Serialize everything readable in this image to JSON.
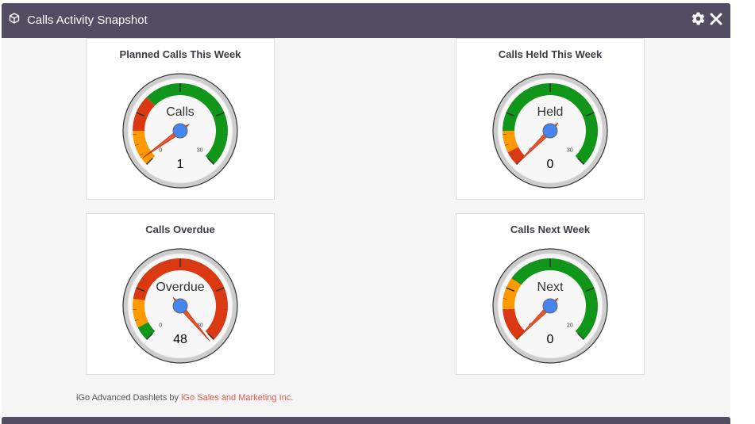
{
  "header": {
    "title": "Calls Activity Snapshot",
    "icon": "cube-icon",
    "actions": [
      "gear-icon",
      "close-icon"
    ]
  },
  "colors": {
    "header_bg": "#534d64",
    "green": "#109618",
    "orange": "#ff9900",
    "red": "#dc3912",
    "needle": "#e5582f",
    "hub": "#4684ee"
  },
  "gauges": [
    {
      "title": "Planned Calls This Week",
      "label": "Calls",
      "value": 1,
      "min": 0,
      "max": 30,
      "min_label": "0",
      "max_label": "30",
      "bands": [
        {
          "from": 0,
          "to": 5,
          "color": "orange"
        },
        {
          "from": 5,
          "to": 10,
          "color": "red"
        },
        {
          "from": 10,
          "to": 30,
          "color": "green"
        }
      ]
    },
    {
      "title": "Calls Held This Week",
      "label": "Held",
      "value": 0,
      "min": 0,
      "max": 30,
      "min_label": "0",
      "max_label": "30",
      "bands": [
        {
          "from": 0,
          "to": 2,
          "color": "red"
        },
        {
          "from": 2,
          "to": 5,
          "color": "orange"
        },
        {
          "from": 5,
          "to": 30,
          "color": "green"
        }
      ]
    },
    {
      "title": "Calls Overdue",
      "label": "Overdue",
      "value": 48,
      "min": 0,
      "max": 30,
      "min_label": "0",
      "max_label": "30",
      "bands": [
        {
          "from": 0,
          "to": 2,
          "color": "green"
        },
        {
          "from": 2,
          "to": 6,
          "color": "orange"
        },
        {
          "from": 6,
          "to": 30,
          "color": "red"
        }
      ]
    },
    {
      "title": "Calls Next Week",
      "label": "Next",
      "value": 0,
      "min": 0,
      "max": 20,
      "min_label": "0",
      "max_label": "20",
      "bands": [
        {
          "from": 0,
          "to": 3,
          "color": "red"
        },
        {
          "from": 3,
          "to": 6,
          "color": "orange"
        },
        {
          "from": 6,
          "to": 20,
          "color": "green"
        }
      ]
    }
  ],
  "footer": {
    "prefix": "iGo Advanced Dashlets by ",
    "link": "iGo Sales and Marketing Inc."
  }
}
